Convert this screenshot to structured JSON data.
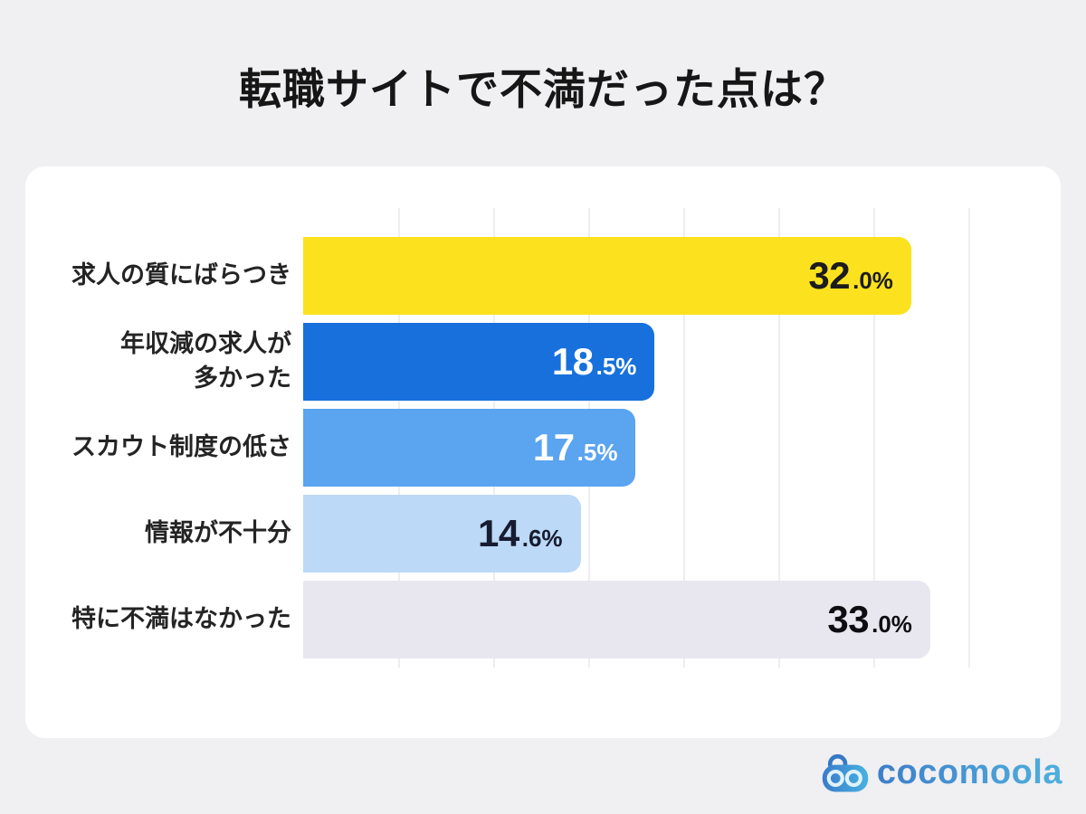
{
  "page": {
    "background": "#f0eff2",
    "panel_background": "#ffffff"
  },
  "title": "転職サイトで不満だった点は？",
  "chart_data": {
    "type": "bar",
    "orientation": "horizontal",
    "title": "転職サイトで不満だった点は？",
    "categories": [
      "求人の質にばらつき",
      "年収減の求人が多かった",
      "スカウト制度の低さ",
      "情報が不十分",
      "特に不満はなかった"
    ],
    "values": [
      32.0,
      18.5,
      17.5,
      14.6,
      33.0
    ],
    "unit": "%",
    "xlim": [
      0,
      38.1
    ],
    "grid": true,
    "gridlines_percent": [
      5,
      10,
      15,
      20,
      25,
      30,
      35
    ],
    "grid_color": "#ededf2",
    "rows": [
      {
        "label": "求人の質にばらつき",
        "value": 32.0,
        "value_main": "32",
        "value_suffix": ".0%",
        "bar_color": "#fce21e",
        "text_color": "#1c1c1c"
      },
      {
        "label": "年収減の求人が\n多かった",
        "value": 18.5,
        "value_main": "18",
        "value_suffix": ".5%",
        "bar_color": "#1770dc",
        "text_color": "#ffffff"
      },
      {
        "label": "スカウト制度の低さ",
        "value": 17.5,
        "value_main": "17",
        "value_suffix": ".5%",
        "bar_color": "#5aa4f0",
        "text_color": "#ffffff"
      },
      {
        "label": "情報が不十分",
        "value": 14.6,
        "value_main": "14",
        "value_suffix": ".6%",
        "bar_color": "#bcd9f7",
        "text_color": "#171c30"
      },
      {
        "label": "特に不満はなかった",
        "value": 33.0,
        "value_main": "33",
        "value_suffix": ".0%",
        "bar_color": "#e8e7ef",
        "text_color": "#0e0e12"
      }
    ]
  },
  "logo": {
    "text": "cocomoola",
    "color_start": "#3e7ecb",
    "color_end": "#4fb0dd",
    "icon": "cocomoola-robot-face-icon"
  }
}
